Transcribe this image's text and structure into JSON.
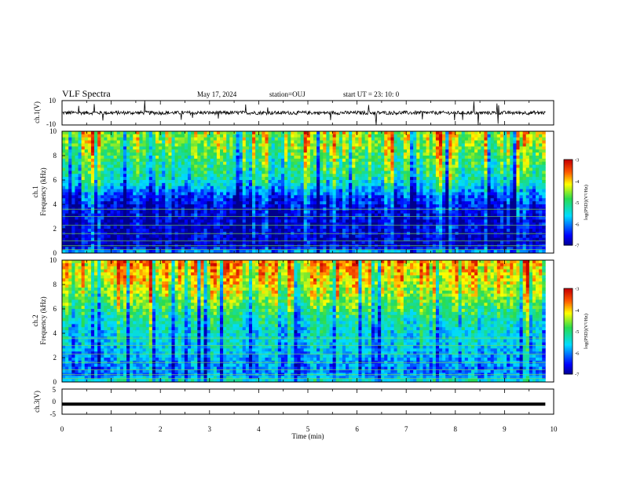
{
  "header": {
    "title": "VLF Spectra",
    "date": "May 17, 2024",
    "station": "station=OUJ",
    "start_ut": "start  UT  =   23: 10: 0"
  },
  "chart_data": [
    {
      "type": "line",
      "panel": "ch1-waveform",
      "ylabel": "ch.1(V)",
      "ylim": [
        -10,
        10
      ],
      "yticks": [
        "10",
        "-10"
      ],
      "xlim": [
        0,
        10
      ],
      "description_values": {
        "baseline": 0,
        "noise_amplitude": 1.5,
        "data_end_min": 9.83
      }
    },
    {
      "type": "heatmap",
      "panel": "ch1-spectrogram",
      "ylabel": "ch.1\nFrequency (kHz)",
      "ylim": [
        0,
        10
      ],
      "yticks": [
        "0",
        "2",
        "4",
        "6",
        "8",
        "10"
      ],
      "xlim": [
        0,
        10
      ],
      "colorbar": {
        "label": "log(PSD)(V²/Hz)",
        "range": [
          -7,
          -3
        ],
        "ticks": [
          "-3",
          "-4",
          "-5",
          "-6",
          "-7"
        ]
      },
      "profile_log_psd_by_freq_khz": {
        "freq_khz": [
          0,
          0.5,
          1,
          1.5,
          2,
          2.5,
          3,
          3.5,
          4,
          4.5,
          5,
          5.5,
          6,
          6.5,
          7,
          7.5,
          8,
          8.5,
          9,
          9.5,
          10
        ],
        "log_psd": [
          -5.6,
          -6.7,
          -6.8,
          -6.7,
          -6.6,
          -6.7,
          -6.6,
          -6.6,
          -6.5,
          -6.3,
          -6.0,
          -5.6,
          -5.3,
          -5.1,
          -5.0,
          -4.9,
          -4.8,
          -4.6,
          -4.5,
          -4.5,
          -4.4
        ]
      },
      "data_end_min": 9.83
    },
    {
      "type": "heatmap",
      "panel": "ch2-spectrogram",
      "ylabel": "ch.2\nFrequency (kHz)",
      "ylim": [
        0,
        10
      ],
      "yticks": [
        "0",
        "2",
        "4",
        "6",
        "8",
        "10"
      ],
      "xlim": [
        0,
        10
      ],
      "colorbar": {
        "label": "log(PSD)(V²/Hz)",
        "range": [
          -7,
          -3
        ],
        "ticks": [
          "-3",
          "-4",
          "-5",
          "-6",
          "-7"
        ]
      },
      "profile_log_psd_by_freq_khz": {
        "freq_khz": [
          0,
          0.5,
          1,
          1.5,
          2,
          2.5,
          3,
          3.5,
          4,
          4.5,
          5,
          5.5,
          6,
          6.5,
          7,
          7.5,
          8,
          8.5,
          9,
          9.5,
          10
        ],
        "log_psd": [
          -5.2,
          -5.9,
          -6.0,
          -5.9,
          -5.8,
          -5.7,
          -5.6,
          -5.5,
          -5.5,
          -5.4,
          -5.3,
          -5.1,
          -4.9,
          -4.7,
          -4.5,
          -4.4,
          -4.2,
          -4.1,
          -4.0,
          -3.9,
          -3.8
        ]
      },
      "data_end_min": 9.83
    },
    {
      "type": "line",
      "panel": "ch3-waveform",
      "ylabel": "ch.3(V)",
      "ylim": [
        -5,
        5
      ],
      "yticks": [
        "5",
        "0",
        "-5"
      ],
      "xlim": [
        0,
        10
      ],
      "description_values": {
        "constant_level": -1,
        "data_end_min": 9.83
      }
    }
  ],
  "x_axis": {
    "label": "Time  (min)",
    "ticks": [
      "0",
      "1",
      "2",
      "3",
      "4",
      "5",
      "6",
      "7",
      "8",
      "9",
      "10"
    ]
  }
}
